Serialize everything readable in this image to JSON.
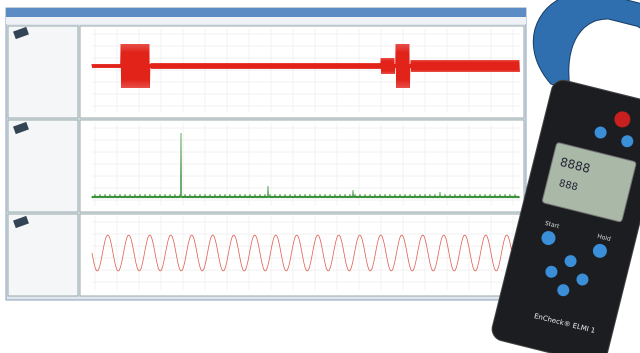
{
  "device": {
    "buttons": [
      "Start",
      "Hold"
    ],
    "label": "EnCheck® ELMI 1"
  }
}
